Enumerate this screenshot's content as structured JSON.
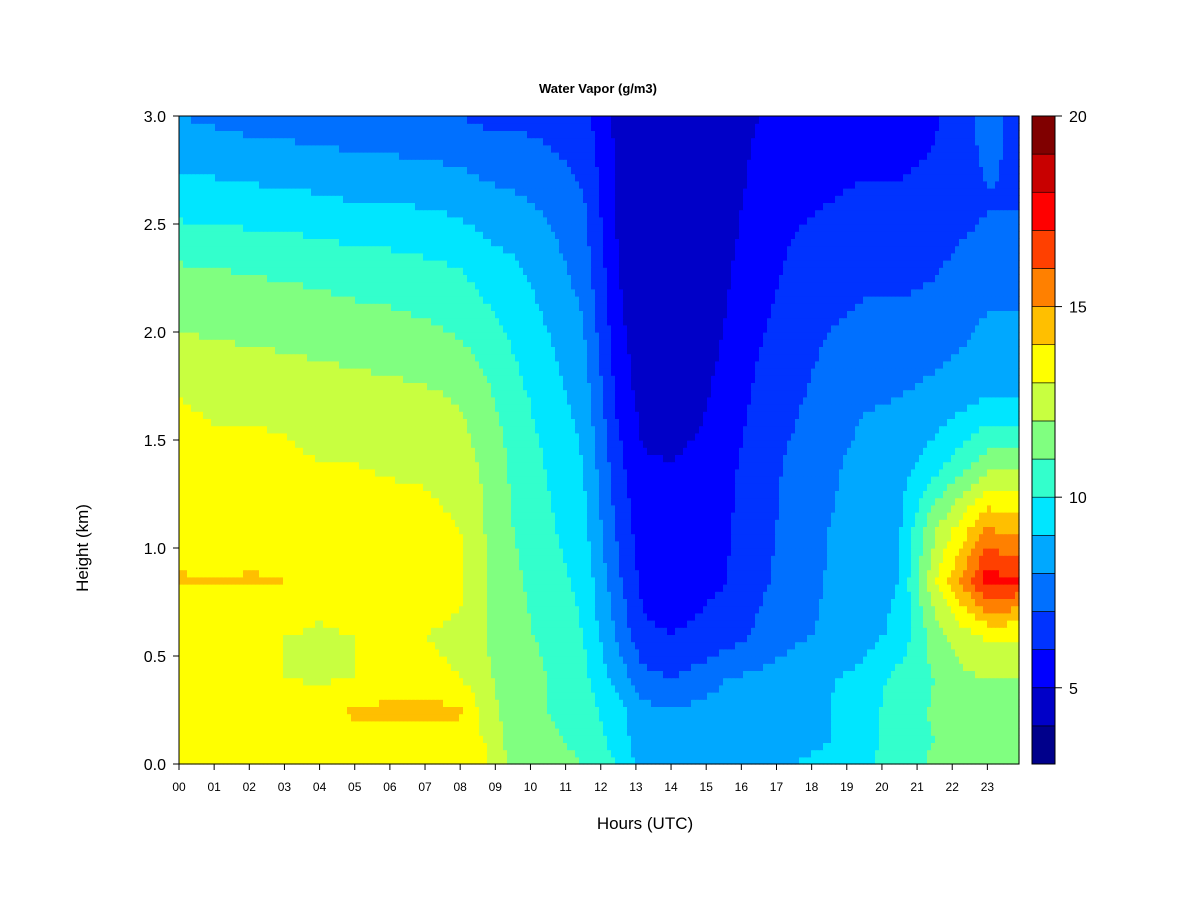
{
  "chart_data": {
    "type": "heatmap",
    "title": "Water Vapor (g/m3)",
    "xlabel": "Hours (UTC)",
    "ylabel": "Height (km)",
    "xlim": [
      0,
      23.9
    ],
    "ylim": [
      0.0,
      3.0
    ],
    "x_ticks": [
      "00",
      "01",
      "02",
      "03",
      "04",
      "05",
      "06",
      "07",
      "08",
      "09",
      "10",
      "11",
      "12",
      "13",
      "14",
      "15",
      "16",
      "17",
      "18",
      "19",
      "20",
      "21",
      "22",
      "23"
    ],
    "y_ticks": [
      "0.0",
      "0.5",
      "1.0",
      "1.5",
      "2.0",
      "2.5",
      "3.0"
    ],
    "colorbar": {
      "min": 3,
      "max": 20,
      "levels": [
        3,
        4,
        5,
        6,
        7,
        8,
        9,
        10,
        11,
        12,
        13,
        14,
        15,
        16,
        17,
        18,
        19,
        20
      ],
      "ticks": [
        "5",
        "10",
        "15",
        "20"
      ],
      "colors": [
        "#00008b",
        "#0000c8",
        "#0000ff",
        "#0033ff",
        "#0070ff",
        "#00a8ff",
        "#00e6ff",
        "#33ffcc",
        "#80ff80",
        "#c8ff40",
        "#ffff00",
        "#ffbf00",
        "#ff8000",
        "#ff4000",
        "#ff0000",
        "#c80000",
        "#800000"
      ]
    },
    "heights_km": [
      0.0,
      0.1,
      0.25,
      0.4,
      0.6,
      0.85,
      1.1,
      1.4,
      1.7,
      2.0,
      2.3,
      2.6,
      3.0
    ],
    "hours": [
      0,
      1,
      2,
      3,
      4,
      5,
      6,
      7,
      8,
      8.7,
      9.5,
      10.5,
      11.5,
      12.5,
      13.2,
      14,
      14.8,
      15.6,
      16.5,
      17.5,
      18.5,
      19.5,
      20.5,
      21.5,
      22.3,
      23,
      23.8
    ],
    "values": [
      [
        13.3,
        13.3,
        13.3,
        13.3,
        13.3,
        13.3,
        13.3,
        13.3,
        13.2,
        13.1,
        11.8,
        11.4,
        11.0,
        10.0,
        8.5,
        8.5,
        8.8,
        8.8,
        8.8,
        9.0,
        9.2,
        9.8,
        10.5,
        11.2,
        11.5,
        11.5,
        11.5
      ],
      [
        13.3,
        13.3,
        13.3,
        13.3,
        13.3,
        13.6,
        13.6,
        13.6,
        13.5,
        13.0,
        11.5,
        11.2,
        10.8,
        9.6,
        8.3,
        8.3,
        8.5,
        8.6,
        8.6,
        8.8,
        9.0,
        9.6,
        10.6,
        11.0,
        11.5,
        11.6,
        11.6
      ],
      [
        13.8,
        13.7,
        13.9,
        13.8,
        13.2,
        14.2,
        14.3,
        14.3,
        14.2,
        12.6,
        11.4,
        11.0,
        10.5,
        9.3,
        8.3,
        8.0,
        8.3,
        8.5,
        8.5,
        8.7,
        9.0,
        9.5,
        10.6,
        11.1,
        11.7,
        11.8,
        11.8
      ],
      [
        13.2,
        13.0,
        13.1,
        13.0,
        12.9,
        13.0,
        13.1,
        13.2,
        13.0,
        12.2,
        11.5,
        11.0,
        10.3,
        8.6,
        7.3,
        7.0,
        7.4,
        8.0,
        8.2,
        8.5,
        8.9,
        9.3,
        10.4,
        11.0,
        11.8,
        12.0,
        12.0
      ],
      [
        13.0,
        13.0,
        13.0,
        13.0,
        12.9,
        13.0,
        13.0,
        13.0,
        12.8,
        12.0,
        11.3,
        10.8,
        10.0,
        7.8,
        6.2,
        6.0,
        6.2,
        6.5,
        7.2,
        7.8,
        8.2,
        8.6,
        9.3,
        11.5,
        12.6,
        13.2,
        13.2
      ],
      [
        14.1,
        14.0,
        14.1,
        14.0,
        13.3,
        13.8,
        13.6,
        13.7,
        13.2,
        12.1,
        11.2,
        10.5,
        9.7,
        7.2,
        5.7,
        5.5,
        5.7,
        6.0,
        6.8,
        7.4,
        8.1,
        8.5,
        9.0,
        12.8,
        15.2,
        17.6,
        17.0
      ],
      [
        13.5,
        13.5,
        13.5,
        13.5,
        13.2,
        13.3,
        13.3,
        13.3,
        13.0,
        12.0,
        11.0,
        10.2,
        9.3,
        6.8,
        5.4,
        5.2,
        5.5,
        5.9,
        6.7,
        7.3,
        8.0,
        8.5,
        8.9,
        11.8,
        13.5,
        15.0,
        14.5
      ],
      [
        13.4,
        13.3,
        13.3,
        13.2,
        13.0,
        13.0,
        12.9,
        12.8,
        12.5,
        11.8,
        10.8,
        9.9,
        9.0,
        6.3,
        5.1,
        5.0,
        5.2,
        5.7,
        6.6,
        7.2,
        7.8,
        8.3,
        8.5,
        9.5,
        10.5,
        11.5,
        11.5
      ],
      [
        13.0,
        12.8,
        12.8,
        12.7,
        12.5,
        12.4,
        12.3,
        12.2,
        11.9,
        11.3,
        10.4,
        9.5,
        8.6,
        5.7,
        4.6,
        4.5,
        4.8,
        5.4,
        6.2,
        6.8,
        7.5,
        7.9,
        8.0,
        8.3,
        8.6,
        9.0,
        9.0
      ],
      [
        12.0,
        11.9,
        11.8,
        11.7,
        11.6,
        11.5,
        11.4,
        11.2,
        10.9,
        10.5,
        9.8,
        9.0,
        8.1,
        5.3,
        4.3,
        4.2,
        4.5,
        5.1,
        5.9,
        6.5,
        7.0,
        7.3,
        7.3,
        7.5,
        7.8,
        8.2,
        8.2
      ],
      [
        11.1,
        11.0,
        10.9,
        10.8,
        10.7,
        10.5,
        10.4,
        10.2,
        10.0,
        9.5,
        9.2,
        8.5,
        7.6,
        5.0,
        4.2,
        4.0,
        4.3,
        4.9,
        5.6,
        6.2,
        6.5,
        6.7,
        6.7,
        6.9,
        7.3,
        7.6,
        7.6
      ],
      [
        9.6,
        9.5,
        9.4,
        9.3,
        9.2,
        9.0,
        9.0,
        8.9,
        8.7,
        8.4,
        8.2,
        7.8,
        7.1,
        4.8,
        4.1,
        4.0,
        4.2,
        4.7,
        5.3,
        5.8,
        6.0,
        6.1,
        6.1,
        6.2,
        6.6,
        6.9,
        6.9
      ],
      [
        8.0,
        7.8,
        7.6,
        7.5,
        7.4,
        7.3,
        7.2,
        7.1,
        7.0,
        6.8,
        6.8,
        6.6,
        6.4,
        4.7,
        4.2,
        4.1,
        4.2,
        4.6,
        5.0,
        5.4,
        5.7,
        5.7,
        5.7,
        5.9,
        6.4,
        7.6,
        6.6
      ]
    ]
  }
}
